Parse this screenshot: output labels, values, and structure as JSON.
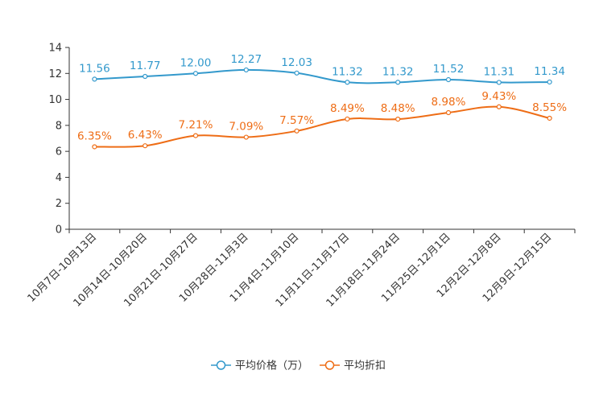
{
  "chart_data": {
    "type": "line",
    "title": "",
    "xlabel": "",
    "ylabel": "",
    "ylim": [
      0,
      14
    ],
    "yticks": [
      0,
      2,
      4,
      6,
      8,
      10,
      12,
      14
    ],
    "ytick_labels": [
      "0",
      "2",
      "4",
      "6",
      "8",
      "10",
      "12",
      "14"
    ],
    "grid": false,
    "legend_position": "bottom-center",
    "categories": [
      "10月7日-10月13日",
      "10月14日-10月20日",
      "10月21日-10月27日",
      "10月28日-11月3日",
      "11月4日-11月10日",
      "11月11日-11月17日",
      "11月18日-11月24日",
      "11月25日-12月1日",
      "12月2日-12月8日",
      "12月9日-12月15日"
    ],
    "series": [
      {
        "name": "平均价格（万）",
        "color": "#3399cc",
        "values": [
          11.56,
          11.77,
          12.0,
          12.27,
          12.03,
          11.32,
          11.32,
          11.52,
          11.31,
          11.34
        ],
        "labels": [
          "11.56",
          "11.77",
          "12.00",
          "12.27",
          "12.03",
          "11.32",
          "11.32",
          "11.52",
          "11.31",
          "11.34"
        ]
      },
      {
        "name": "平均折扣",
        "color": "#ee6d16",
        "values": [
          6.35,
          6.43,
          7.21,
          7.09,
          7.57,
          8.49,
          8.48,
          8.98,
          9.43,
          8.55
        ],
        "labels": [
          "6.35%",
          "6.43%",
          "7.21%",
          "7.09%",
          "7.57%",
          "8.49%",
          "8.48%",
          "8.98%",
          "9.43%",
          "8.55%"
        ]
      }
    ]
  }
}
